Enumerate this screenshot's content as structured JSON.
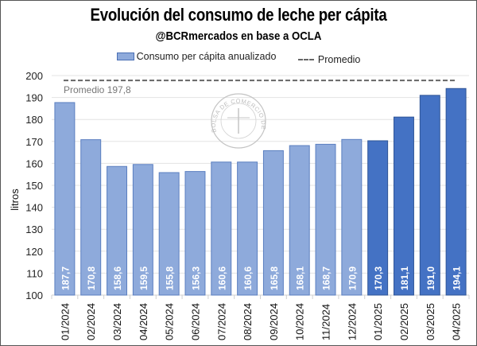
{
  "chart_data": {
    "type": "bar",
    "title": "Evolución del consumo de leche per cápita",
    "subtitle": "@BCRmercados en base a OCLA",
    "xlabel": "",
    "ylabel": "litros",
    "ylim": [
      100,
      200
    ],
    "yticks": [
      100,
      110,
      120,
      130,
      140,
      150,
      160,
      170,
      180,
      190,
      200
    ],
    "grid": true,
    "legend_position": "top",
    "categories": [
      "01/2024",
      "02/2024",
      "03/2024",
      "04/2024",
      "05/2024",
      "06/2024",
      "07/2024",
      "08/2024",
      "09/2024",
      "10/2024",
      "11/2024",
      "12/2024",
      "01/2025",
      "02/2025",
      "03/2025",
      "04/2025"
    ],
    "series": [
      {
        "name": "Consumo per cápita anualizado",
        "values": [
          187.7,
          170.8,
          158.6,
          159.5,
          155.8,
          156.3,
          160.6,
          160.6,
          165.8,
          168.1,
          168.7,
          170.9,
          170.3,
          181.1,
          191.0,
          194.1
        ],
        "labels": [
          "187,7",
          "170,8",
          "158,6",
          "159,5",
          "155,8",
          "156,3",
          "160,6",
          "160,6",
          "165,8",
          "168,1",
          "168,7",
          "170,9",
          "170,3",
          "181,1",
          "191,0",
          "194,1"
        ],
        "colors_by_year": {
          "2024": "#8eaadb",
          "2025": "#4472c4"
        }
      },
      {
        "name": "Promedio",
        "type": "line",
        "style": "dashed",
        "value": 197.8,
        "label": "Promedio 197,8",
        "color": "#666666"
      }
    ],
    "watermark": "BOLSA DE COMERCIO DE ROSARIO"
  },
  "legend": {
    "bars_label": "Consumo per cápita anualizado",
    "line_label": "Promedio"
  }
}
